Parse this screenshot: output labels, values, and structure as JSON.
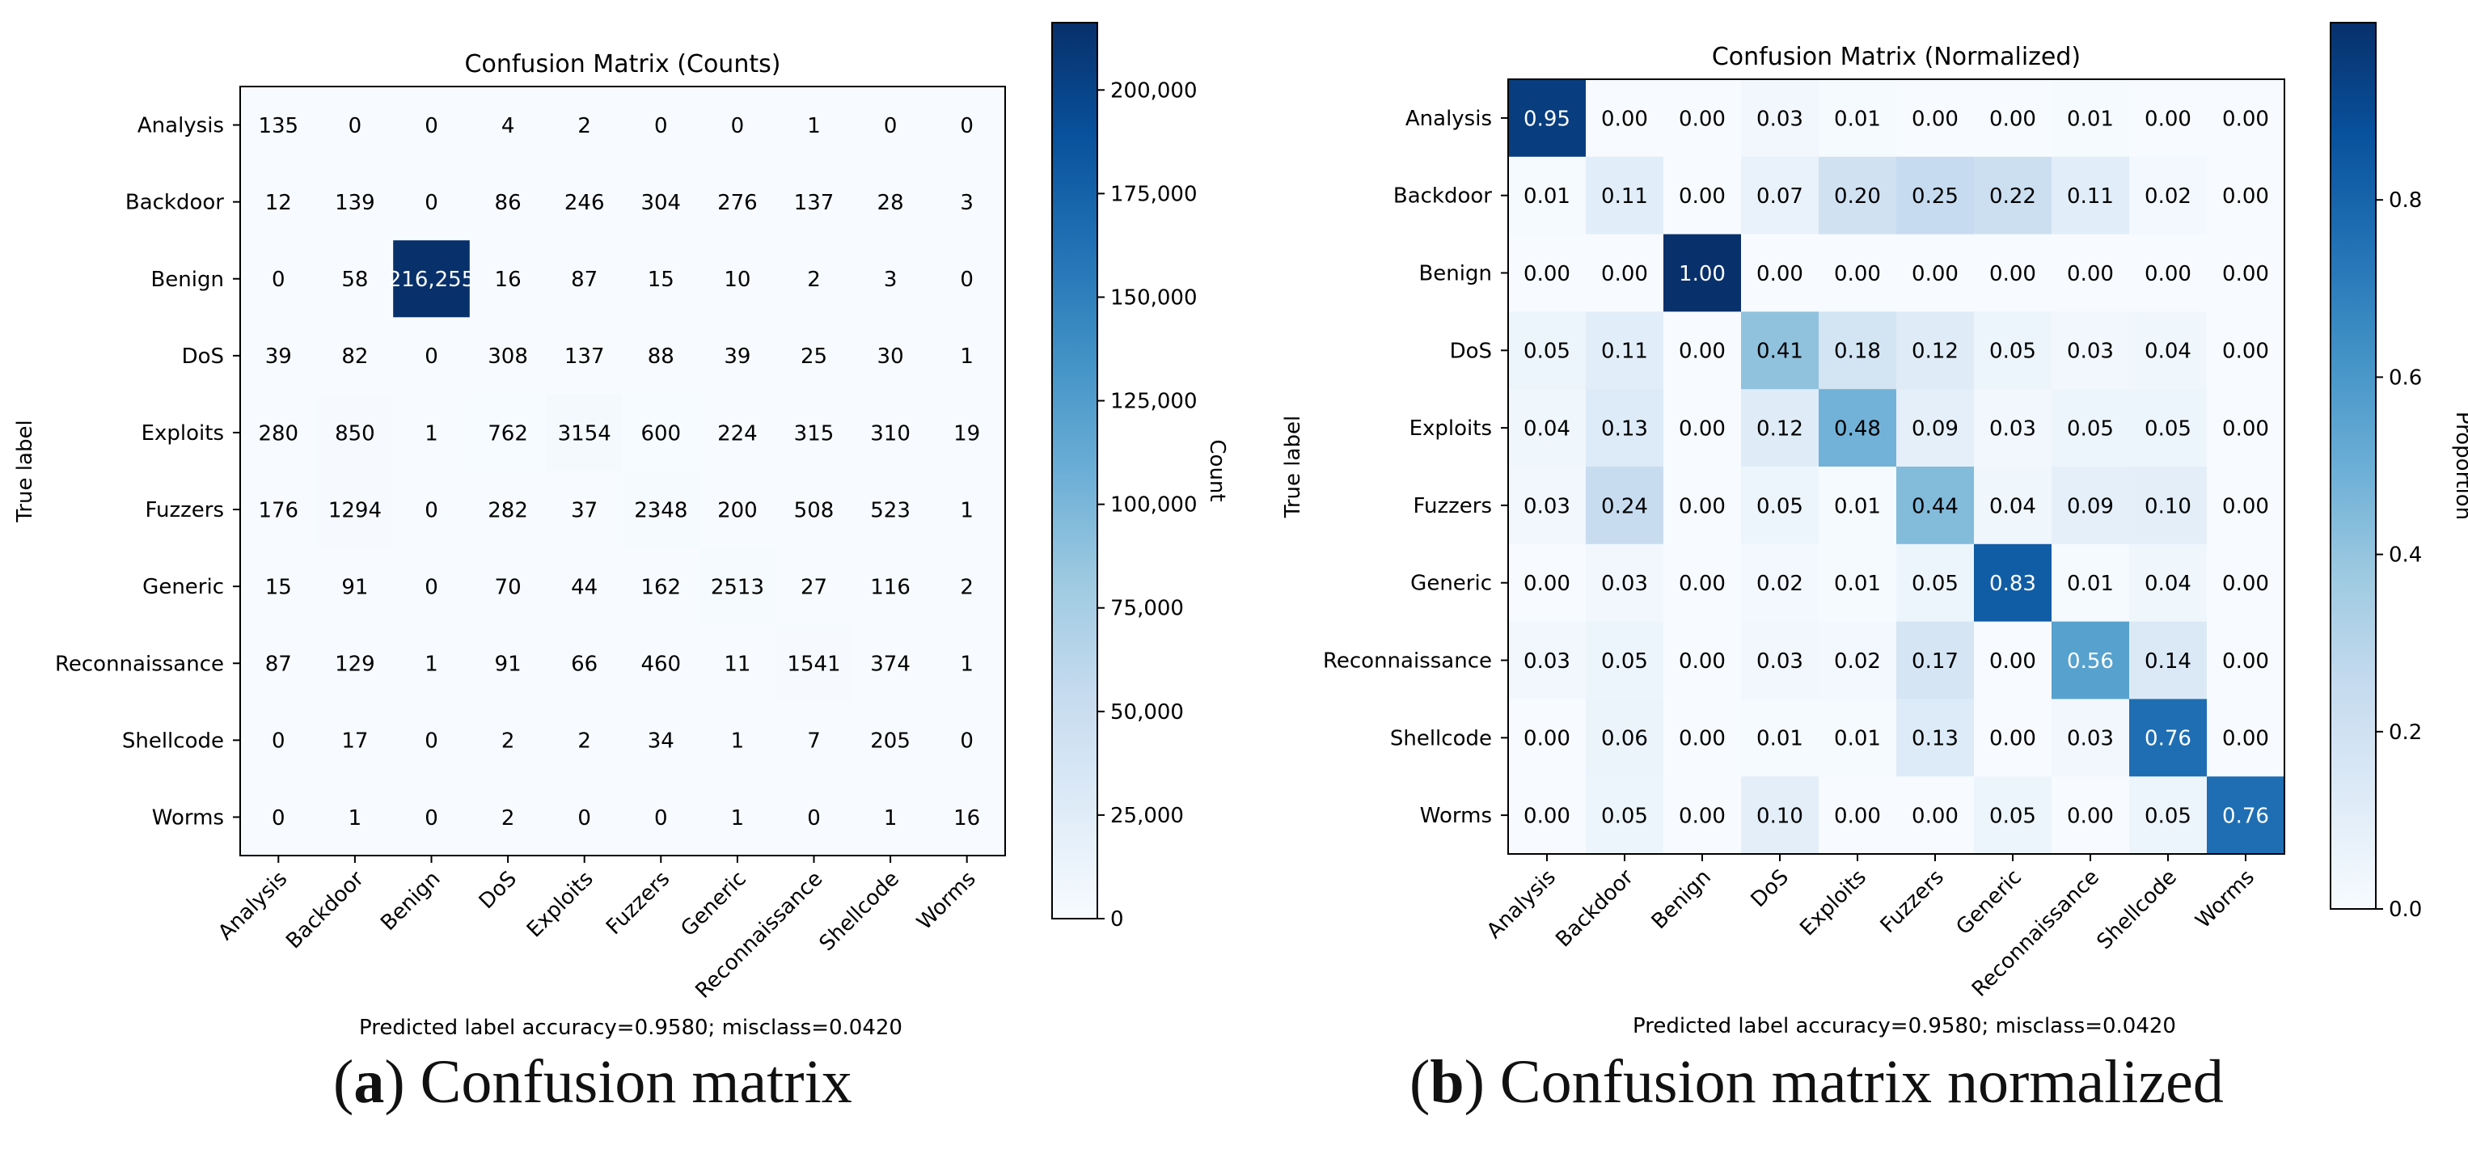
{
  "labels": [
    "Analysis",
    "Backdoor",
    "Benign",
    "DoS",
    "Exploits",
    "Fuzzers",
    "Generic",
    "Reconnaissance",
    "Shellcode",
    "Worms"
  ],
  "chart_data": [
    {
      "type": "heatmap",
      "title": "Confusion Matrix (Counts)",
      "xlabel": "Predicted label accuracy=0.9580; misclass=0.0420",
      "ylabel": "True label",
      "colorbar_label": "Count",
      "colorbar_ticks": [
        "0",
        "25,000",
        "50,000",
        "75,000",
        "100,000",
        "125,000",
        "150,000",
        "175,000",
        "200,000"
      ],
      "colorbar_tick_values": [
        0,
        25000,
        50000,
        75000,
        100000,
        125000,
        150000,
        175000,
        200000
      ],
      "vmin": 0,
      "vmax": 216255,
      "cells": [
        [
          "135",
          "0",
          "0",
          "4",
          "2",
          "0",
          "0",
          "1",
          "0",
          "0"
        ],
        [
          "12",
          "139",
          "0",
          "86",
          "246",
          "304",
          "276",
          "137",
          "28",
          "3"
        ],
        [
          "0",
          "58",
          "216,255",
          "16",
          "87",
          "15",
          "10",
          "2",
          "3",
          "0"
        ],
        [
          "39",
          "82",
          "0",
          "308",
          "137",
          "88",
          "39",
          "25",
          "30",
          "1"
        ],
        [
          "280",
          "850",
          "1",
          "762",
          "3154",
          "600",
          "224",
          "315",
          "310",
          "19"
        ],
        [
          "176",
          "1294",
          "0",
          "282",
          "37",
          "2348",
          "200",
          "508",
          "523",
          "1"
        ],
        [
          "15",
          "91",
          "0",
          "70",
          "44",
          "162",
          "2513",
          "27",
          "116",
          "2"
        ],
        [
          "87",
          "129",
          "1",
          "91",
          "66",
          "460",
          "11",
          "1541",
          "374",
          "1"
        ],
        [
          "0",
          "17",
          "0",
          "2",
          "2",
          "34",
          "1",
          "7",
          "205",
          "0"
        ],
        [
          "0",
          "1",
          "0",
          "2",
          "0",
          "0",
          "1",
          "0",
          "1",
          "16"
        ]
      ]
    },
    {
      "type": "heatmap",
      "title": "Confusion Matrix (Normalized)",
      "xlabel": "Predicted label accuracy=0.9580; misclass=0.0420",
      "ylabel": "True label",
      "colorbar_label": "Proportion",
      "colorbar_ticks": [
        "0.0",
        "0.2",
        "0.4",
        "0.6",
        "0.8"
      ],
      "colorbar_tick_values": [
        0,
        0.2,
        0.4,
        0.6,
        0.8
      ],
      "vmin": 0,
      "vmax": 1.0,
      "cells": [
        [
          "0.95",
          "0.00",
          "0.00",
          "0.03",
          "0.01",
          "0.00",
          "0.00",
          "0.01",
          "0.00",
          "0.00"
        ],
        [
          "0.01",
          "0.11",
          "0.00",
          "0.07",
          "0.20",
          "0.25",
          "0.22",
          "0.11",
          "0.02",
          "0.00"
        ],
        [
          "0.00",
          "0.00",
          "1.00",
          "0.00",
          "0.00",
          "0.00",
          "0.00",
          "0.00",
          "0.00",
          "0.00"
        ],
        [
          "0.05",
          "0.11",
          "0.00",
          "0.41",
          "0.18",
          "0.12",
          "0.05",
          "0.03",
          "0.04",
          "0.00"
        ],
        [
          "0.04",
          "0.13",
          "0.00",
          "0.12",
          "0.48",
          "0.09",
          "0.03",
          "0.05",
          "0.05",
          "0.00"
        ],
        [
          "0.03",
          "0.24",
          "0.00",
          "0.05",
          "0.01",
          "0.44",
          "0.04",
          "0.09",
          "0.10",
          "0.00"
        ],
        [
          "0.00",
          "0.03",
          "0.00",
          "0.02",
          "0.01",
          "0.05",
          "0.83",
          "0.01",
          "0.04",
          "0.00"
        ],
        [
          "0.03",
          "0.05",
          "0.00",
          "0.03",
          "0.02",
          "0.17",
          "0.00",
          "0.56",
          "0.14",
          "0.00"
        ],
        [
          "0.00",
          "0.06",
          "0.00",
          "0.01",
          "0.01",
          "0.13",
          "0.00",
          "0.03",
          "0.76",
          "0.00"
        ],
        [
          "0.00",
          "0.05",
          "0.00",
          "0.10",
          "0.00",
          "0.00",
          "0.05",
          "0.00",
          "0.05",
          "0.76"
        ]
      ]
    }
  ],
  "captions": {
    "a_letter": "a",
    "a_text": "Confusion matrix",
    "b_letter": "b",
    "b_text": "Confusion matrix normalized"
  }
}
